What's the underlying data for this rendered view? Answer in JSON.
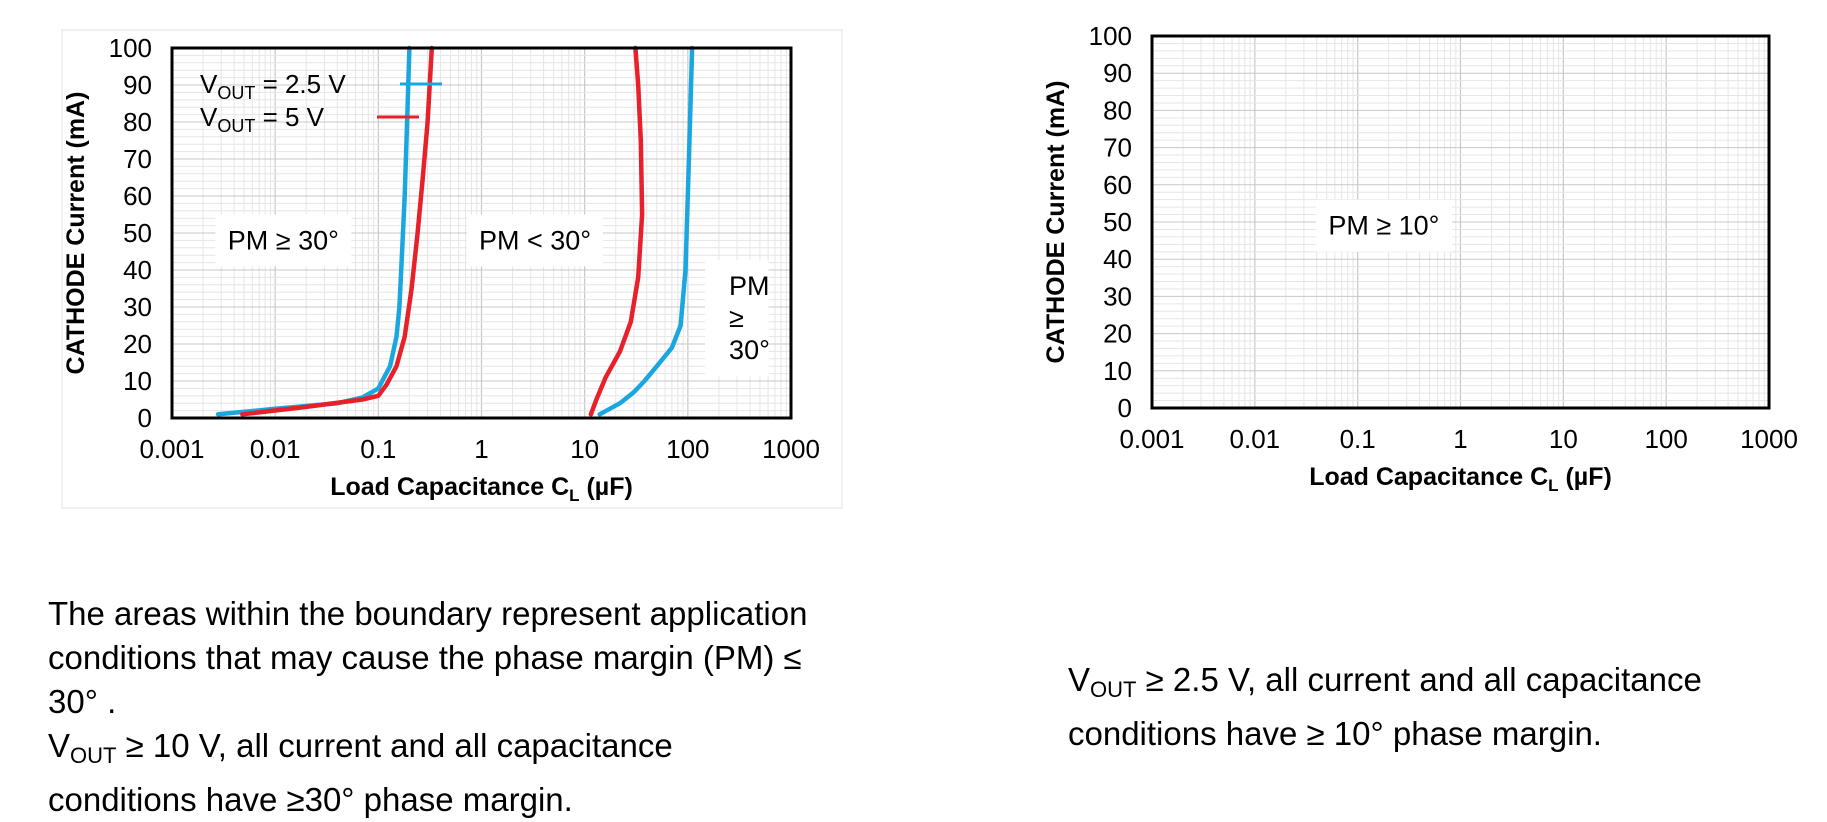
{
  "chart_data": [
    {
      "type": "line",
      "x_scale": "log",
      "xlim": [
        0.001,
        1000
      ],
      "ylim": [
        0,
        100
      ],
      "x_ticks": [
        "0.001",
        "0.01",
        "0.1",
        "1",
        "10",
        "100",
        "1000"
      ],
      "y_ticks": [
        "0",
        "10",
        "20",
        "30",
        "40",
        "50",
        "60",
        "70",
        "80",
        "90",
        "100"
      ],
      "xlabel": "Load Capacitance C",
      "xlabel_sub": "L",
      "xlabel_unit": "(µF)",
      "ylabel": "CATHODE Current (mA)",
      "grid": true,
      "legend_position": "top-left",
      "series": [
        {
          "name_main": "V",
          "name_sub": "OUT",
          "name_tail": "= 2.5 V",
          "color": "#1aa7e0",
          "segments": [
            [
              [
                0.0028,
                1
              ],
              [
                0.01,
                2.5
              ],
              [
                0.04,
                4
              ],
              [
                0.07,
                5.5
              ],
              [
                0.1,
                8
              ],
              [
                0.13,
                14
              ],
              [
                0.15,
                22
              ],
              [
                0.16,
                30
              ],
              [
                0.17,
                45
              ],
              [
                0.18,
                60
              ],
              [
                0.19,
                80
              ],
              [
                0.2,
                100
              ]
            ],
            [
              [
                14,
                1
              ],
              [
                22,
                4
              ],
              [
                30,
                7
              ],
              [
                38,
                10
              ],
              [
                50,
                14
              ],
              [
                70,
                19
              ],
              [
                85,
                25
              ],
              [
                95,
                40
              ],
              [
                100,
                60
              ],
              [
                105,
                80
              ],
              [
                110,
                100
              ]
            ]
          ]
        },
        {
          "name_main": "V",
          "name_sub": "OUT",
          "name_tail": "= 5 V",
          "color": "#e8202a",
          "segments": [
            [
              [
                0.0048,
                1
              ],
              [
                0.02,
                3
              ],
              [
                0.07,
                5
              ],
              [
                0.1,
                6
              ],
              [
                0.12,
                9
              ],
              [
                0.15,
                14
              ],
              [
                0.18,
                22
              ],
              [
                0.21,
                35
              ],
              [
                0.24,
                50
              ],
              [
                0.27,
                65
              ],
              [
                0.3,
                80
              ],
              [
                0.33,
                100
              ]
            ],
            [
              [
                11.5,
                1
              ],
              [
                13,
                5
              ],
              [
                16,
                11
              ],
              [
                22,
                18
              ],
              [
                28,
                26
              ],
              [
                33,
                38
              ],
              [
                36,
                55
              ],
              [
                35,
                75
              ],
              [
                33,
                90
              ],
              [
                31,
                100
              ]
            ]
          ]
        }
      ],
      "annotations": [
        {
          "lines": [
            "PM ≥ 30°"
          ],
          "x": 0.012,
          "y": 48
        },
        {
          "lines": [
            "PM < 30°"
          ],
          "x": 3.3,
          "y": 48
        },
        {
          "lines": [
            "PM",
            "≥",
            "30°"
          ],
          "x": 240,
          "y": 27
        }
      ]
    },
    {
      "type": "line",
      "x_scale": "log",
      "xlim": [
        0.001,
        1000
      ],
      "ylim": [
        0,
        100
      ],
      "x_ticks": [
        "0.001",
        "0.01",
        "0.1",
        "1",
        "10",
        "100",
        "1000"
      ],
      "y_ticks": [
        "0",
        "10",
        "20",
        "30",
        "40",
        "50",
        "60",
        "70",
        "80",
        "90",
        "100"
      ],
      "xlabel": "Load Capacitance C",
      "xlabel_sub": "L",
      "xlabel_unit": "(µF)",
      "ylabel": "CATHODE Current (mA)",
      "grid": true,
      "series": [],
      "annotations": [
        {
          "lines": [
            "PM ≥ 10°"
          ],
          "x": 0.18,
          "y": 49
        }
      ]
    }
  ],
  "captions": {
    "left": {
      "line1": "The areas within the boundary represent application",
      "line2": "conditions that may cause the phase margin (PM) ≤",
      "line3": "30°  .",
      "line4_main": "V",
      "line4_sub": "OUT",
      "line4_tail": " ≥ 10 V, all current and all capacitance",
      "line5": "conditions have ≥30°   phase margin."
    },
    "right": {
      "line1_main": "V",
      "line1_sub": "OUT",
      "line1_tail": " ≥ 2.5 V, all current and all capacitance",
      "line2": "conditions have ≥ 10°   phase margin."
    }
  }
}
